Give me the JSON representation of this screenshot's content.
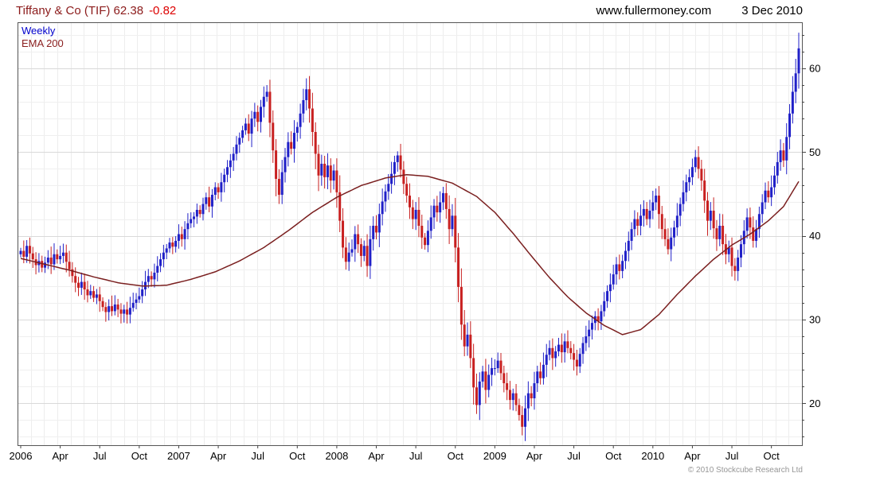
{
  "header": {
    "instrument": "Tiffany & Co (TIF) 62.38",
    "change": "-0.82",
    "site": "www.fullermoney.com",
    "date": "3 Dec 2010"
  },
  "legend": {
    "series": "Weekly",
    "overlay": "EMA 200"
  },
  "footer": {
    "copyright": "© 2010 Stockcube Research Ltd"
  },
  "colors": {
    "up": "#2020c8",
    "down": "#c82020",
    "ema": "#7a1f1f",
    "grid_minor": "#efefef",
    "grid_major": "#d9d9d9",
    "axis": "#444444",
    "border": "#555555"
  },
  "chart_data": {
    "type": "candlestick",
    "timeframe": "Weekly",
    "legend_position": "top-left",
    "ylim": [
      15,
      65.5
    ],
    "yticks": [
      20,
      30,
      40,
      50,
      60
    ],
    "y_minor_step": 2,
    "x_month_divisions": 59,
    "xticks": [
      {
        "label": "2006",
        "week": 0
      },
      {
        "label": "Apr",
        "week": 13
      },
      {
        "label": "Jul",
        "week": 26
      },
      {
        "label": "Oct",
        "week": 39
      },
      {
        "label": "2007",
        "week": 52
      },
      {
        "label": "Apr",
        "week": 65
      },
      {
        "label": "Jul",
        "week": 78
      },
      {
        "label": "Oct",
        "week": 91
      },
      {
        "label": "2008",
        "week": 104
      },
      {
        "label": "Apr",
        "week": 117
      },
      {
        "label": "Jul",
        "week": 130
      },
      {
        "label": "Oct",
        "week": 143
      },
      {
        "label": "2009",
        "week": 156
      },
      {
        "label": "Apr",
        "week": 169
      },
      {
        "label": "Jul",
        "week": 182
      },
      {
        "label": "Oct",
        "week": 195
      },
      {
        "label": "2010",
        "week": 208
      },
      {
        "label": "Apr",
        "week": 221
      },
      {
        "label": "Jul",
        "week": 234
      },
      {
        "label": "Oct",
        "week": 247
      }
    ],
    "first_open": 37.8,
    "last": {
      "close": 62.38,
      "change": -0.82
    },
    "closes": [
      38.2,
      37.5,
      38.8,
      37.9,
      37.2,
      36.5,
      37.0,
      36.2,
      36.8,
      37.4,
      36.6,
      37.8,
      37.2,
      37.6,
      38.0,
      36.9,
      36.0,
      35.2,
      34.4,
      33.8,
      34.5,
      33.6,
      32.9,
      33.4,
      32.6,
      33.0,
      32.2,
      31.5,
      30.9,
      31.6,
      31.0,
      31.8,
      31.2,
      30.7,
      31.2,
      30.6,
      31.4,
      32.0,
      32.4,
      32.8,
      33.6,
      34.5,
      35.2,
      34.8,
      35.6,
      36.4,
      37.2,
      38.0,
      38.5,
      39.2,
      38.7,
      39.4,
      40.2,
      39.6,
      40.8,
      41.5,
      42.0,
      42.3,
      43.1,
      42.6,
      43.8,
      44.6,
      43.5,
      44.9,
      45.8,
      45.2,
      46.4,
      47.3,
      48.2,
      49.0,
      49.8,
      50.9,
      51.7,
      52.6,
      53.4,
      52.2,
      54.0,
      54.8,
      53.6,
      55.4,
      56.6,
      57.2,
      53.5,
      50.2,
      46.8,
      44.9,
      47.6,
      49.4,
      51.2,
      50.4,
      52.3,
      53.0,
      54.6,
      56.2,
      57.5,
      55.2,
      52.4,
      49.8,
      47.2,
      48.6,
      47.0,
      48.4,
      46.6,
      47.8,
      45.2,
      41.8,
      38.6,
      36.9,
      38.0,
      38.4,
      40.2,
      39.0,
      37.6,
      38.8,
      36.4,
      39.6,
      41.2,
      40.4,
      42.6,
      44.1,
      45.3,
      46.2,
      47.4,
      48.8,
      49.6,
      47.9,
      46.2,
      44.8,
      43.4,
      42.0,
      43.1,
      41.2,
      39.8,
      38.9,
      40.6,
      42.2,
      43.6,
      42.8,
      44.0,
      45.1,
      43.2,
      40.8,
      42.4,
      38.6,
      33.9,
      29.4,
      26.8,
      28.2,
      25.4,
      21.9,
      19.8,
      22.6,
      23.8,
      21.6,
      23.4,
      24.2,
      24.2,
      25.1,
      23.6,
      22.4,
      21.6,
      20.4,
      21.2,
      19.8,
      18.6,
      17.2,
      19.4,
      21.2,
      20.6,
      22.4,
      23.8,
      23.0,
      24.6,
      25.8,
      26.6,
      25.4,
      26.2,
      27.0,
      26.1,
      27.4,
      26.6,
      26.0,
      25.2,
      24.4,
      25.9,
      27.2,
      28.0,
      28.8,
      29.6,
      30.4,
      29.8,
      31.0,
      32.2,
      33.4,
      34.2,
      35.4,
      36.6,
      35.8,
      37.0,
      38.2,
      39.4,
      40.8,
      42.0,
      41.2,
      42.4,
      43.2,
      42.0,
      43.0,
      44.0,
      44.8,
      42.6,
      40.8,
      39.6,
      38.4,
      39.8,
      41.0,
      42.4,
      43.8,
      45.2,
      46.4,
      47.0,
      48.2,
      49.4,
      48.0,
      46.6,
      44.2,
      41.8,
      43.0,
      40.9,
      39.6,
      41.2,
      39.0,
      37.8,
      38.6,
      36.4,
      35.8,
      37.4,
      39.0,
      40.6,
      42.2,
      41.0,
      39.4,
      40.8,
      42.6,
      44.0,
      45.4,
      44.6,
      45.8,
      47.2,
      48.8,
      50.2,
      49.0,
      51.8,
      54.6,
      57.2,
      59.4,
      62.38
    ],
    "ema200": {
      "weeks": [
        0,
        8,
        16,
        24,
        32,
        40,
        48,
        56,
        64,
        72,
        80,
        88,
        96,
        104,
        112,
        120,
        127,
        134,
        142,
        150,
        156,
        162,
        168,
        174,
        180,
        186,
        192,
        198,
        204,
        210,
        216,
        222,
        228,
        234,
        240,
        246,
        251,
        256
      ],
      "values": [
        37.3,
        36.6,
        35.9,
        35.1,
        34.4,
        34.0,
        34.1,
        34.8,
        35.7,
        37.0,
        38.6,
        40.6,
        42.8,
        44.6,
        46.0,
        46.9,
        47.3,
        47.1,
        46.3,
        44.7,
        42.8,
        40.3,
        37.6,
        35.0,
        32.7,
        30.8,
        29.3,
        28.2,
        28.8,
        30.6,
        33.0,
        35.2,
        37.2,
        38.9,
        40.2,
        41.8,
        43.5,
        46.5
      ]
    }
  }
}
